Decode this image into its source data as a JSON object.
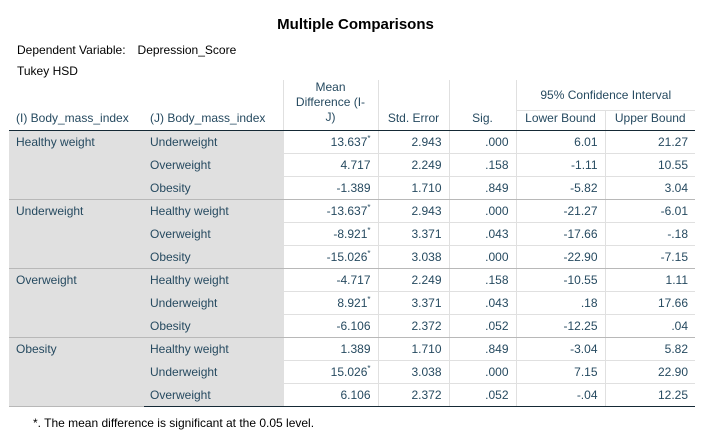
{
  "title": "Multiple Comparisons",
  "dependent_variable_label": "Dependent Variable:",
  "dependent_variable_value": "Depression_Score",
  "method": "Tukey HSD",
  "headers": {
    "i": "(I) Body_mass_index",
    "j": "(J) Body_mass_index",
    "mean_diff": "Mean Difference (I-J)",
    "mean_diff_l1": "Mean",
    "mean_diff_l2": "Difference (I-",
    "mean_diff_l3": "J)",
    "std_error": "Std. Error",
    "sig": "Sig.",
    "ci": "95% Confidence Interval",
    "lower": "Lower Bound",
    "upper": "Upper Bound"
  },
  "groups": [
    {
      "i": "Healthy weight",
      "rows": [
        {
          "j": "Underweight",
          "md": "13.637",
          "star": "*",
          "se": "2.943",
          "sig": ".000",
          "lb": "6.01",
          "ub": "21.27"
        },
        {
          "j": "Overweight",
          "md": "4.717",
          "star": "",
          "se": "2.249",
          "sig": ".158",
          "lb": "-1.11",
          "ub": "10.55"
        },
        {
          "j": "Obesity",
          "md": "-1.389",
          "star": "",
          "se": "1.710",
          "sig": ".849",
          "lb": "-5.82",
          "ub": "3.04"
        }
      ]
    },
    {
      "i": "Underweight",
      "rows": [
        {
          "j": "Healthy weight",
          "md": "-13.637",
          "star": "*",
          "se": "2.943",
          "sig": ".000",
          "lb": "-21.27",
          "ub": "-6.01"
        },
        {
          "j": "Overweight",
          "md": "-8.921",
          "star": "*",
          "se": "3.371",
          "sig": ".043",
          "lb": "-17.66",
          "ub": "-.18"
        },
        {
          "j": "Obesity",
          "md": "-15.026",
          "star": "*",
          "se": "3.038",
          "sig": ".000",
          "lb": "-22.90",
          "ub": "-7.15"
        }
      ]
    },
    {
      "i": "Overweight",
      "rows": [
        {
          "j": "Healthy weight",
          "md": "-4.717",
          "star": "",
          "se": "2.249",
          "sig": ".158",
          "lb": "-10.55",
          "ub": "1.11"
        },
        {
          "j": "Underweight",
          "md": "8.921",
          "star": "*",
          "se": "3.371",
          "sig": ".043",
          "lb": ".18",
          "ub": "17.66"
        },
        {
          "j": "Obesity",
          "md": "-6.106",
          "star": "",
          "se": "2.372",
          "sig": ".052",
          "lb": "-12.25",
          "ub": ".04"
        }
      ]
    },
    {
      "i": "Obesity",
      "rows": [
        {
          "j": "Healthy weight",
          "md": "1.389",
          "star": "",
          "se": "1.710",
          "sig": ".849",
          "lb": "-3.04",
          "ub": "5.82"
        },
        {
          "j": "Underweight",
          "md": "15.026",
          "star": "*",
          "se": "3.038",
          "sig": ".000",
          "lb": "7.15",
          "ub": "22.90"
        },
        {
          "j": "Overweight",
          "md": "6.106",
          "star": "",
          "se": "2.372",
          "sig": ".052",
          "lb": "-.04",
          "ub": "12.25"
        }
      ]
    }
  ],
  "footnote": "*. The mean difference is significant at the 0.05 level.",
  "colors": {
    "header_text": "#264a60",
    "label_bg": "#e0e0e0",
    "rule": "#152935"
  }
}
